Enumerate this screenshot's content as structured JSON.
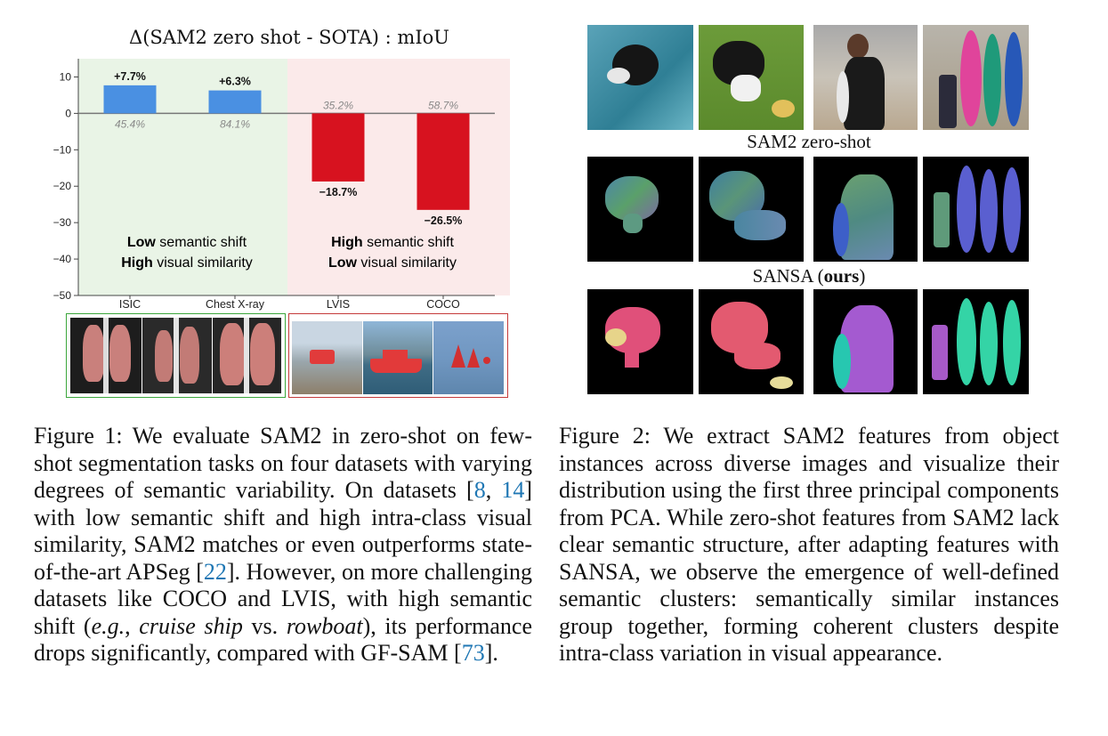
{
  "figure1": {
    "chart_data": {
      "type": "bar",
      "title": "Δ(SAM2 zero shot - SOTA) : mIoU",
      "categories": [
        "ISIC",
        "Chest X-ray",
        "LVIS",
        "COCO"
      ],
      "values": [
        7.7,
        6.3,
        -18.7,
        -26.5
      ],
      "delta_labels": [
        "+7.7%",
        "+6.3%",
        "−18.7%",
        "−26.5%"
      ],
      "score_labels": [
        "45.4%",
        "84.1%",
        "35.2%",
        "58.7%"
      ],
      "ylim": [
        -50,
        15
      ],
      "yticks": [
        10,
        0,
        -10,
        -20,
        -30,
        -40,
        -50
      ],
      "colors": {
        "positive": "#4a90e2",
        "negative": "#d7121f",
        "low_shift_bg": "#e9f4e6",
        "high_shift_bg": "#fbeaea"
      },
      "regions": [
        {
          "bold": "Low",
          "text": " semantic shift",
          "bold2": "High",
          "text2": " visual similarity"
        },
        {
          "bold": "High",
          "text": " semantic shift",
          "bold2": "Low",
          "text2": " visual similarity"
        }
      ],
      "grid": false
    },
    "caption": {
      "p1": "Figure 1: We evaluate SAM2 in zero-shot on few-shot segmentation tasks on four datasets with varying degrees of semantic variability. On datasets [",
      "c1": "8",
      "p2": ", ",
      "c2": "14",
      "p3": "] with low semantic shift and high intra-class visual similarity, SAM2 matches or even outperforms state-of-the-art APSeg [",
      "c3": "22",
      "p4": "]. However, on more challenging datasets like COCO and LVIS, with high semantic shift (",
      "i1": "e.g.",
      "p5": ", ",
      "i2": "cruise ship",
      "p6": " vs. ",
      "i3": "rowboat",
      "p7": "), its performance drops significantly, compared with GF-SAM [",
      "c4": "73",
      "p8": "]."
    }
  },
  "figure2": {
    "row_labels": {
      "zero_shot": "SAM2 zero-shot",
      "ours_prefix": "SANSA (",
      "ours_bold": "ours",
      "ours_suffix": ")"
    },
    "caption": "Figure 2: We extract SAM2 features from object instances across diverse images and visualize their distribution using the first three principal components from PCA. While zero-shot features from SAM2 lack clear semantic structure, after adapting features with SANSA, we observe the emergence of well-defined semantic clusters: semantically similar instances group together, forming coherent clusters despite intra-class variation in visual appearance."
  }
}
